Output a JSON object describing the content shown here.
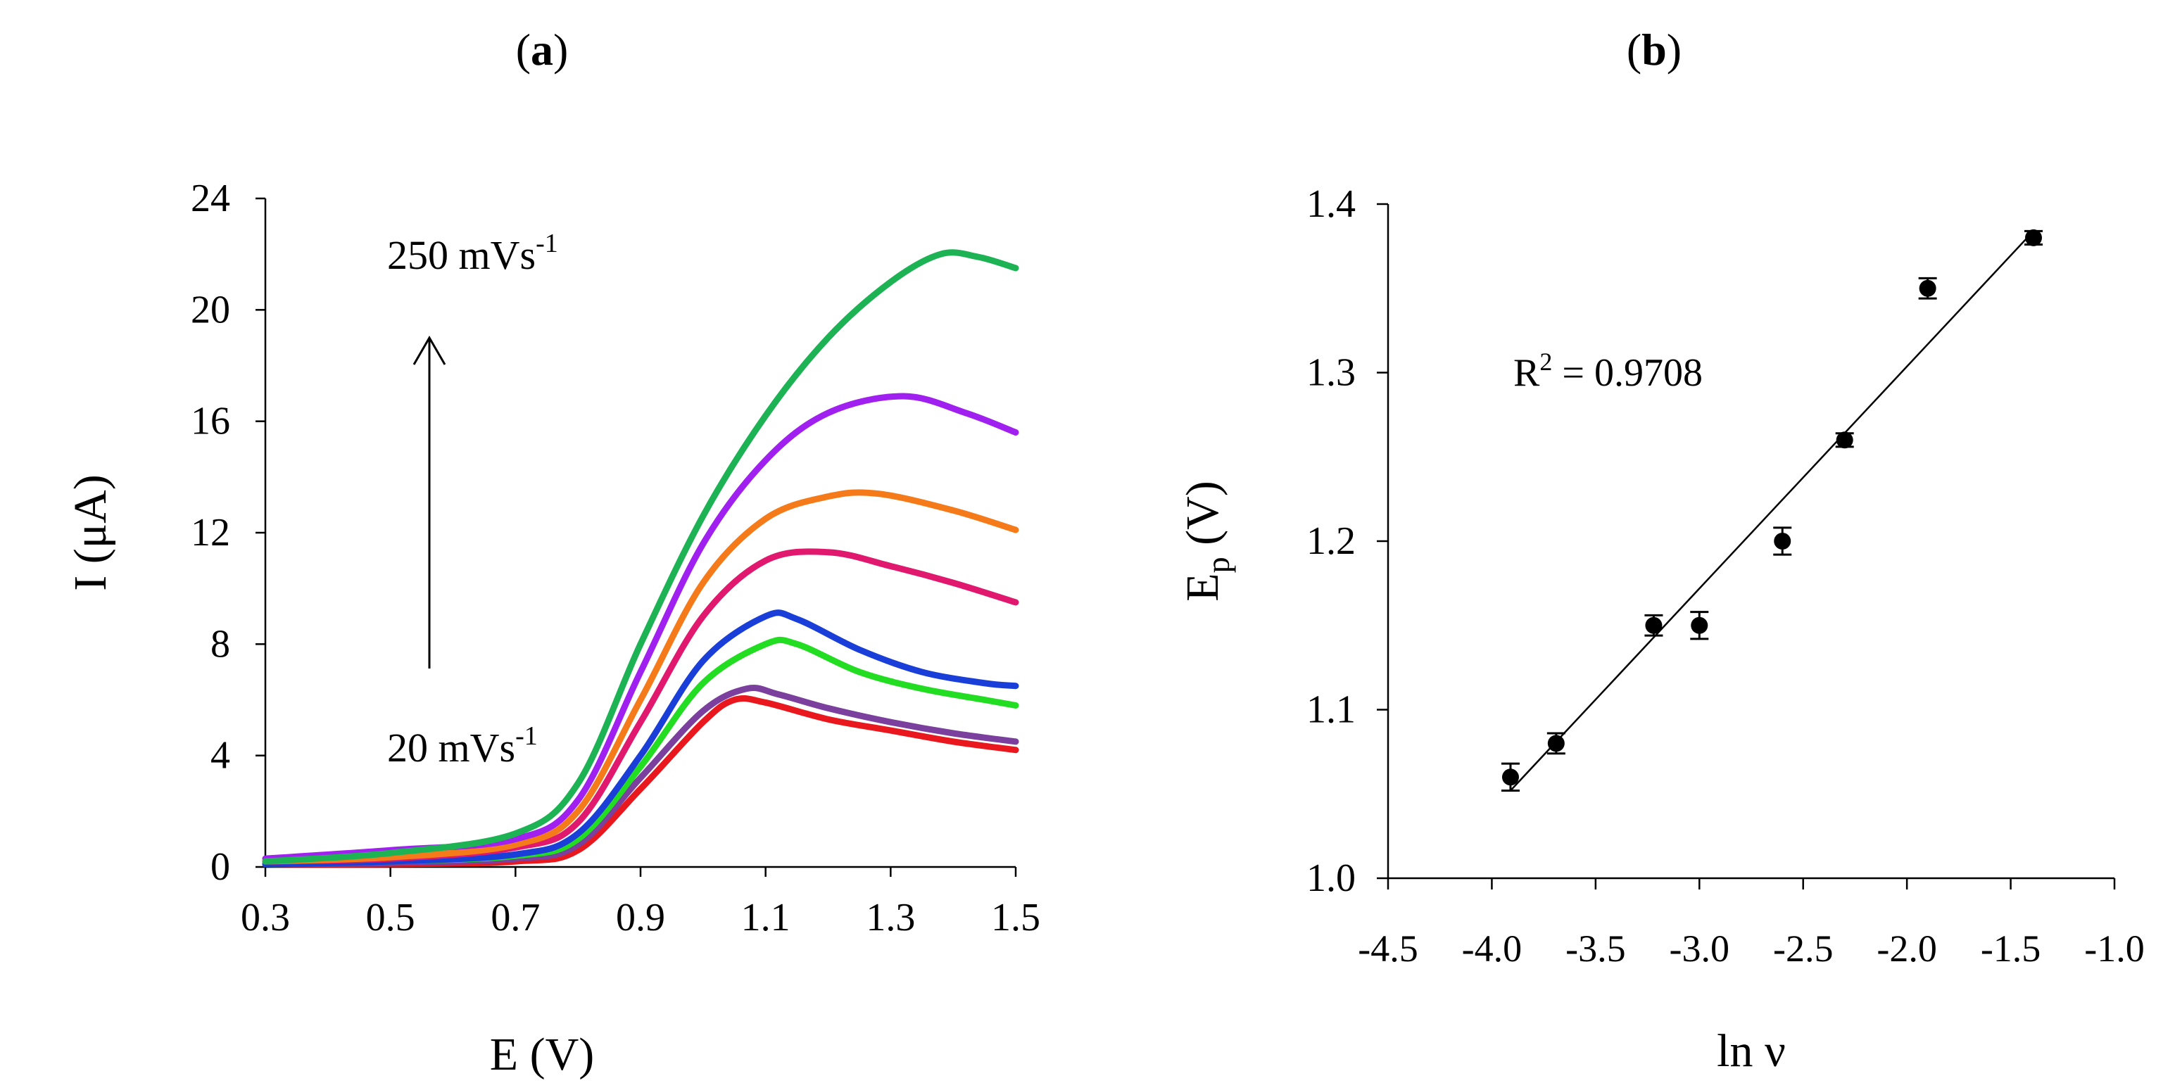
{
  "panels": {
    "a": {
      "label_letter": "a",
      "open_paren": "(",
      "close_paren": ")"
    },
    "b": {
      "label_letter": "b",
      "open_paren": "(",
      "close_paren": ")"
    }
  },
  "chart_data": [
    {
      "panel": "a",
      "type": "line",
      "xlabel": "E (V)",
      "ylabel": "I (μA)",
      "xlim": [
        0.3,
        1.5
      ],
      "ylim": [
        0,
        24
      ],
      "xticks": [
        "0.3",
        "0.5",
        "0.7",
        "0.9",
        "1.1",
        "1.3",
        "1.5"
      ],
      "yticks": [
        "0",
        "4",
        "8",
        "12",
        "16",
        "20",
        "24"
      ],
      "grid": false,
      "annotations": {
        "top_label": {
          "base": "250 mVs",
          "sup": "-1"
        },
        "bottom_label": {
          "base": "20 mVs",
          "sup": "-1"
        },
        "arrow": "up"
      },
      "series": [
        {
          "color": "#e8181e",
          "values": [
            [
              0.3,
              0.1
            ],
            [
              0.5,
              0.1
            ],
            [
              0.7,
              0.2
            ],
            [
              0.8,
              0.6
            ],
            [
              0.9,
              2.8
            ],
            [
              1.0,
              5.2
            ],
            [
              1.05,
              6.0
            ],
            [
              1.1,
              5.9
            ],
            [
              1.2,
              5.3
            ],
            [
              1.3,
              4.9
            ],
            [
              1.4,
              4.5
            ],
            [
              1.5,
              4.2
            ]
          ]
        },
        {
          "color": "#7b3f9e",
          "values": [
            [
              0.3,
              0.1
            ],
            [
              0.5,
              0.15
            ],
            [
              0.7,
              0.3
            ],
            [
              0.8,
              0.8
            ],
            [
              0.9,
              3.2
            ],
            [
              1.0,
              5.6
            ],
            [
              1.07,
              6.4
            ],
            [
              1.12,
              6.2
            ],
            [
              1.2,
              5.7
            ],
            [
              1.3,
              5.2
            ],
            [
              1.4,
              4.8
            ],
            [
              1.5,
              4.5
            ]
          ]
        },
        {
          "color": "#22dd22",
          "values": [
            [
              0.3,
              0.1
            ],
            [
              0.5,
              0.2
            ],
            [
              0.7,
              0.4
            ],
            [
              0.8,
              1.0
            ],
            [
              0.9,
              3.6
            ],
            [
              1.0,
              6.6
            ],
            [
              1.1,
              8.0
            ],
            [
              1.15,
              8.0
            ],
            [
              1.25,
              7.0
            ],
            [
              1.35,
              6.4
            ],
            [
              1.45,
              6.0
            ],
            [
              1.5,
              5.8
            ]
          ]
        },
        {
          "color": "#1a3fd8",
          "values": [
            [
              0.3,
              0.1
            ],
            [
              0.5,
              0.2
            ],
            [
              0.7,
              0.45
            ],
            [
              0.8,
              1.2
            ],
            [
              0.9,
              4.0
            ],
            [
              1.0,
              7.4
            ],
            [
              1.1,
              9.0
            ],
            [
              1.15,
              8.9
            ],
            [
              1.25,
              7.8
            ],
            [
              1.35,
              7.0
            ],
            [
              1.45,
              6.6
            ],
            [
              1.5,
              6.5
            ]
          ]
        },
        {
          "color": "#e0186e",
          "values": [
            [
              0.3,
              0.2
            ],
            [
              0.5,
              0.3
            ],
            [
              0.7,
              0.7
            ],
            [
              0.8,
              1.6
            ],
            [
              0.9,
              5.2
            ],
            [
              1.0,
              9.0
            ],
            [
              1.1,
              11.0
            ],
            [
              1.2,
              11.3
            ],
            [
              1.3,
              10.8
            ],
            [
              1.4,
              10.2
            ],
            [
              1.5,
              9.5
            ]
          ]
        },
        {
          "color": "#f57a1a",
          "values": [
            [
              0.3,
              0.2
            ],
            [
              0.5,
              0.35
            ],
            [
              0.7,
              0.8
            ],
            [
              0.8,
              2.0
            ],
            [
              0.9,
              6.0
            ],
            [
              1.0,
              10.2
            ],
            [
              1.1,
              12.5
            ],
            [
              1.2,
              13.3
            ],
            [
              1.28,
              13.4
            ],
            [
              1.4,
              12.8
            ],
            [
              1.5,
              12.1
            ]
          ]
        },
        {
          "color": "#a020f0",
          "values": [
            [
              0.3,
              0.3
            ],
            [
              0.5,
              0.6
            ],
            [
              0.7,
              1.0
            ],
            [
              0.8,
              2.4
            ],
            [
              0.9,
              7.0
            ],
            [
              1.0,
              11.6
            ],
            [
              1.1,
              14.6
            ],
            [
              1.2,
              16.3
            ],
            [
              1.32,
              16.9
            ],
            [
              1.42,
              16.3
            ],
            [
              1.5,
              15.6
            ]
          ]
        },
        {
          "color": "#1db354",
          "values": [
            [
              0.3,
              0.2
            ],
            [
              0.5,
              0.5
            ],
            [
              0.7,
              1.2
            ],
            [
              0.8,
              3.0
            ],
            [
              0.9,
              8.0
            ],
            [
              1.0,
              12.6
            ],
            [
              1.1,
              16.2
            ],
            [
              1.2,
              19.0
            ],
            [
              1.3,
              21.0
            ],
            [
              1.38,
              22.0
            ],
            [
              1.44,
              21.9
            ],
            [
              1.5,
              21.5
            ]
          ]
        }
      ]
    },
    {
      "panel": "b",
      "type": "scatter",
      "xlabel": "ln ν",
      "ylabel": {
        "base": "E",
        "sub": "p",
        "rest": " (V)"
      },
      "xlim": [
        -4.5,
        -1.0
      ],
      "ylim": [
        1.0,
        1.4
      ],
      "xticks": [
        "-4.5",
        "-4.0",
        "-3.5",
        "-3.0",
        "-2.5",
        "-2.0",
        "-1.5",
        "-1.0"
      ],
      "yticks": [
        "1.0",
        "1.1",
        "1.2",
        "1.3",
        "1.4"
      ],
      "grid": false,
      "annotation": {
        "base": "R",
        "sup": "2",
        "rest": " = 0.9708"
      },
      "points": [
        {
          "x": -3.91,
          "y": 1.06,
          "err": 0.008
        },
        {
          "x": -3.69,
          "y": 1.08,
          "err": 0.006
        },
        {
          "x": -3.22,
          "y": 1.15,
          "err": 0.006
        },
        {
          "x": -3.0,
          "y": 1.15,
          "err": 0.008
        },
        {
          "x": -2.6,
          "y": 1.2,
          "err": 0.008
        },
        {
          "x": -2.3,
          "y": 1.26,
          "err": 0.004
        },
        {
          "x": -1.9,
          "y": 1.35,
          "err": 0.006
        },
        {
          "x": -1.39,
          "y": 1.38,
          "err": 0.004
        }
      ],
      "fit_line": [
        [
          -3.91,
          1.052
        ],
        [
          -1.39,
          1.384
        ]
      ]
    }
  ]
}
